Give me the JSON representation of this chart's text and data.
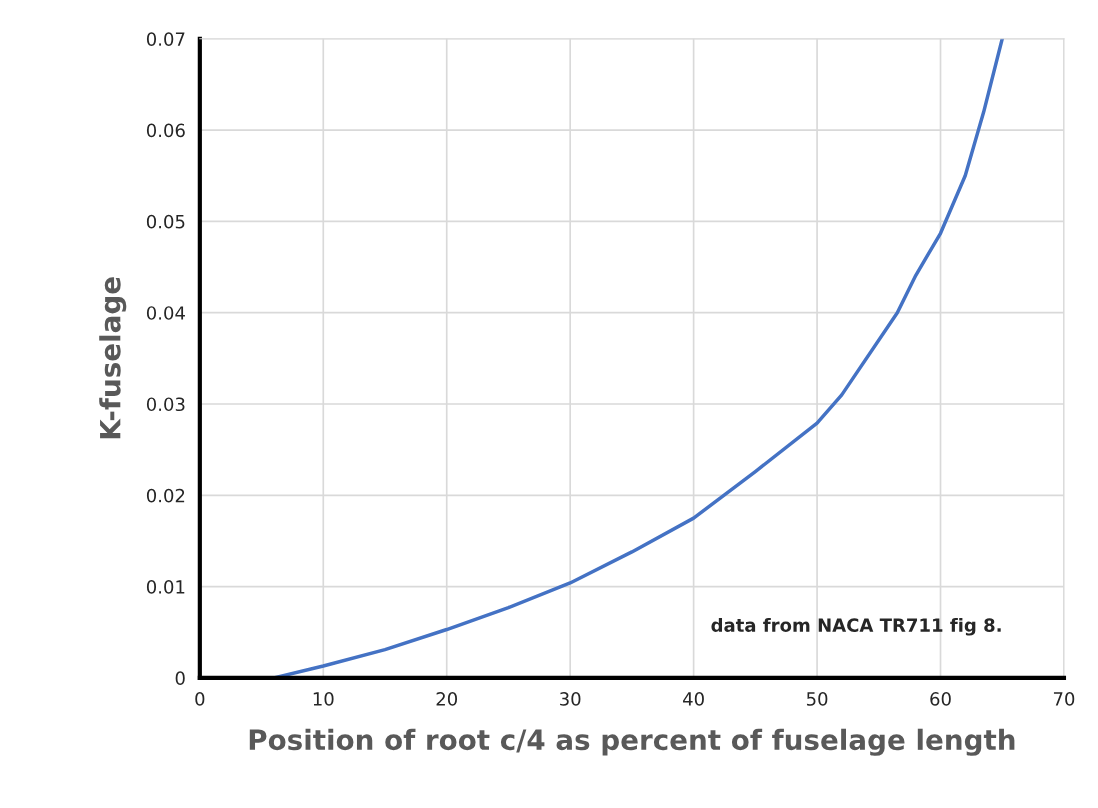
{
  "chart_data": {
    "type": "line",
    "xlabel": "Position of root c/4 as percent of fuselage length",
    "ylabel": "K-fuselage",
    "x": [
      6,
      10,
      15,
      20,
      25,
      30,
      35,
      40,
      45,
      50,
      52,
      56.5,
      58,
      60,
      62,
      63.5,
      65
    ],
    "series": [
      {
        "color": "#4472c4",
        "values": [
          0,
          0.0013,
          0.0031,
          0.0053,
          0.0077,
          0.0104,
          0.0138,
          0.0175,
          0.0226,
          0.0279,
          0.031,
          0.04,
          0.0441,
          0.0487,
          0.055,
          0.062,
          0.07
        ]
      }
    ],
    "xlim": [
      0,
      70
    ],
    "xticks": [
      0,
      10,
      20,
      30,
      40,
      50,
      60,
      70
    ],
    "ylim": [
      0,
      0.07
    ],
    "yticks": [
      0,
      0.01,
      0.02,
      0.03,
      0.04,
      0.05,
      0.06,
      0.07
    ],
    "grid": true,
    "marker": "none",
    "line_style": "solid",
    "legend": false,
    "annotations": [
      "data from NACA TR711 fig 8."
    ]
  }
}
